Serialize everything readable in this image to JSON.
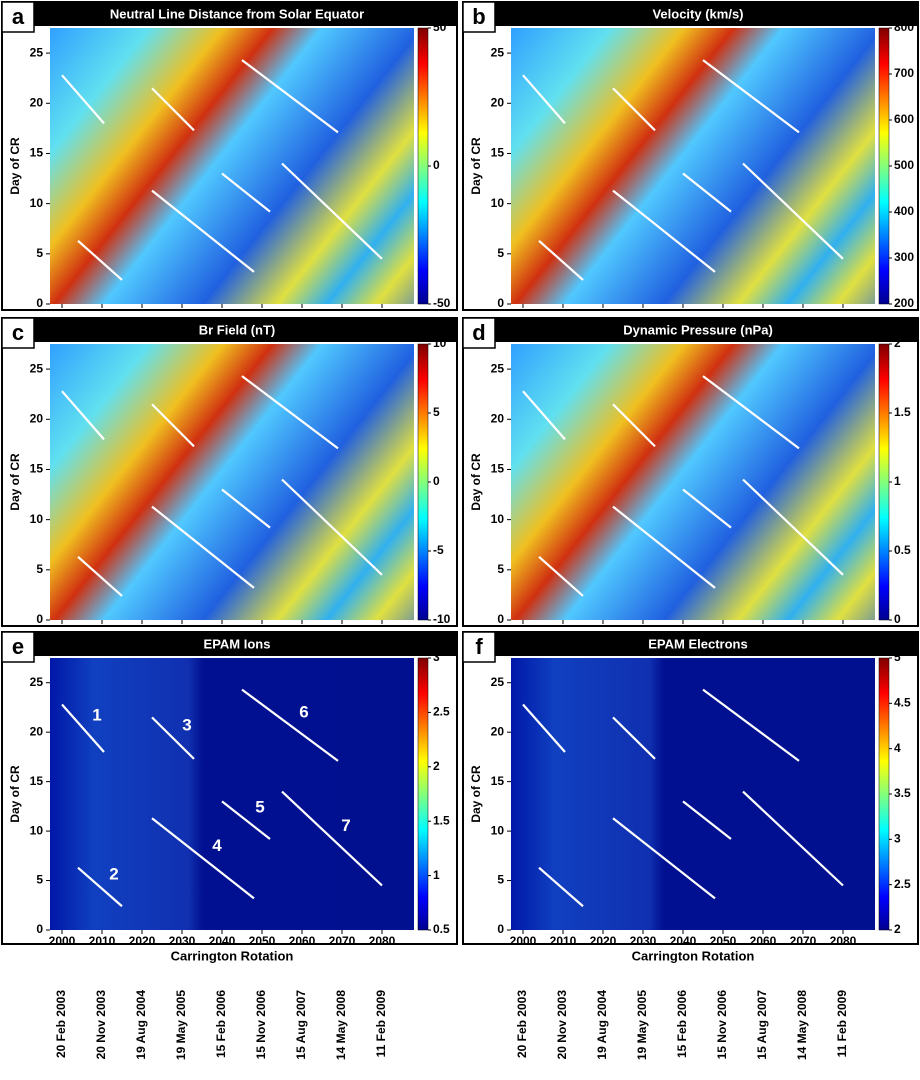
{
  "chart_data": [
    {
      "type": "heatmap",
      "letter": "a",
      "title": "Neutral Line Distance from Solar Equator",
      "ylabel": "Day of CR",
      "xlim": [
        1997,
        2088
      ],
      "xticks": [
        2000,
        2010,
        2020,
        2030,
        2040,
        2050,
        2060,
        2070,
        2080
      ],
      "ylim": [
        0,
        27.5
      ],
      "yticks": [
        0,
        5,
        10,
        15,
        20,
        25
      ],
      "clim": [
        -50,
        50
      ],
      "cticks": [
        -50,
        0,
        50
      ],
      "colormap": "jet",
      "tracks": [
        {
          "x": [
            2000,
            2010.5
          ],
          "y": [
            22.8,
            18
          ]
        },
        {
          "x": [
            2004,
            2015
          ],
          "y": [
            6.3,
            2.4
          ]
        },
        {
          "x": [
            2022.5,
            2033
          ],
          "y": [
            21.5,
            17.3
          ]
        },
        {
          "x": [
            2022.5,
            2048
          ],
          "y": [
            11.3,
            3.2
          ]
        },
        {
          "x": [
            2040,
            2052
          ],
          "y": [
            13,
            9.2
          ]
        },
        {
          "x": [
            2045,
            2069
          ],
          "y": [
            24.3,
            17.1
          ]
        },
        {
          "x": [
            2055,
            2080
          ],
          "y": [
            14,
            4.5
          ]
        }
      ]
    },
    {
      "type": "heatmap",
      "letter": "b",
      "title": "Velocity (km/s)",
      "ylabel": "Day of CR",
      "xlim": [
        1997,
        2088
      ],
      "xticks": [
        2000,
        2010,
        2020,
        2030,
        2040,
        2050,
        2060,
        2070,
        2080
      ],
      "ylim": [
        0,
        27.5
      ],
      "yticks": [
        0,
        5,
        10,
        15,
        20,
        25
      ],
      "clim": [
        200,
        800
      ],
      "cticks": [
        200,
        300,
        400,
        500,
        600,
        700,
        800
      ],
      "colormap": "jet",
      "tracks": [
        {
          "x": [
            2000,
            2010.5
          ],
          "y": [
            22.8,
            18
          ]
        },
        {
          "x": [
            2004,
            2015
          ],
          "y": [
            6.3,
            2.4
          ]
        },
        {
          "x": [
            2022.5,
            2033
          ],
          "y": [
            21.5,
            17.3
          ]
        },
        {
          "x": [
            2022.5,
            2048
          ],
          "y": [
            11.3,
            3.2
          ]
        },
        {
          "x": [
            2040,
            2052
          ],
          "y": [
            13,
            9.2
          ]
        },
        {
          "x": [
            2045,
            2069
          ],
          "y": [
            24.3,
            17.1
          ]
        },
        {
          "x": [
            2055,
            2080
          ],
          "y": [
            14,
            4.5
          ]
        }
      ]
    },
    {
      "type": "heatmap",
      "letter": "c",
      "title": "Br Field (nT)",
      "ylabel": "Day of CR",
      "xlim": [
        1997,
        2088
      ],
      "xticks": [
        2000,
        2010,
        2020,
        2030,
        2040,
        2050,
        2060,
        2070,
        2080
      ],
      "ylim": [
        0,
        27.5
      ],
      "yticks": [
        0,
        5,
        10,
        15,
        20,
        25
      ],
      "clim": [
        -10,
        10
      ],
      "cticks": [
        -10,
        -5,
        0,
        5,
        10
      ],
      "colormap": "jet",
      "tracks": [
        {
          "x": [
            2000,
            2010.5
          ],
          "y": [
            22.8,
            18
          ]
        },
        {
          "x": [
            2004,
            2015
          ],
          "y": [
            6.3,
            2.4
          ]
        },
        {
          "x": [
            2022.5,
            2033
          ],
          "y": [
            21.5,
            17.3
          ]
        },
        {
          "x": [
            2022.5,
            2048
          ],
          "y": [
            11.3,
            3.2
          ]
        },
        {
          "x": [
            2040,
            2052
          ],
          "y": [
            13,
            9.2
          ]
        },
        {
          "x": [
            2045,
            2069
          ],
          "y": [
            24.3,
            17.1
          ]
        },
        {
          "x": [
            2055,
            2080
          ],
          "y": [
            14,
            4.5
          ]
        }
      ]
    },
    {
      "type": "heatmap",
      "letter": "d",
      "title": "Dynamic Pressure (nPa)",
      "ylabel": "Day of CR",
      "xlim": [
        1997,
        2088
      ],
      "xticks": [
        2000,
        2010,
        2020,
        2030,
        2040,
        2050,
        2060,
        2070,
        2080
      ],
      "ylim": [
        0,
        27.5
      ],
      "yticks": [
        0,
        5,
        10,
        15,
        20,
        25
      ],
      "clim": [
        0,
        2
      ],
      "cticks": [
        0,
        0.5,
        1,
        1.5,
        2
      ],
      "colormap": "jet",
      "tracks": [
        {
          "x": [
            2000,
            2010.5
          ],
          "y": [
            22.8,
            18
          ]
        },
        {
          "x": [
            2004,
            2015
          ],
          "y": [
            6.3,
            2.4
          ]
        },
        {
          "x": [
            2022.5,
            2033
          ],
          "y": [
            21.5,
            17.3
          ]
        },
        {
          "x": [
            2022.5,
            2048
          ],
          "y": [
            11.3,
            3.2
          ]
        },
        {
          "x": [
            2040,
            2052
          ],
          "y": [
            13,
            9.2
          ]
        },
        {
          "x": [
            2045,
            2069
          ],
          "y": [
            24.3,
            17.1
          ]
        },
        {
          "x": [
            2055,
            2080
          ],
          "y": [
            14,
            4.5
          ]
        }
      ]
    },
    {
      "type": "heatmap",
      "letter": "e",
      "title": "EPAM Ions",
      "ylabel": "Day of CR",
      "xlabel": "Carrington Rotation",
      "xlim": [
        1997,
        2088
      ],
      "xticks": [
        2000,
        2010,
        2020,
        2030,
        2040,
        2050,
        2060,
        2070,
        2080
      ],
      "date_labels": [
        "20 Feb 2003",
        "20 Nov 2003",
        "19 Aug 2004",
        "19 May 2005",
        "15 Feb 2006",
        "15 Nov 2006",
        "15 Aug 2007",
        "14 May 2008",
        "11 Feb 2009"
      ],
      "ylim": [
        0,
        27.5
      ],
      "yticks": [
        0,
        5,
        10,
        15,
        20,
        25
      ],
      "clim": [
        0.5,
        3
      ],
      "cticks": [
        0.5,
        1,
        1.5,
        2,
        2.5,
        3
      ],
      "colormap": "jet",
      "tracks": [
        {
          "label": "1",
          "x": [
            2000,
            2010.5
          ],
          "y": [
            22.8,
            18
          ]
        },
        {
          "label": "2",
          "x": [
            2004,
            2015
          ],
          "y": [
            6.3,
            2.4
          ]
        },
        {
          "label": "3",
          "x": [
            2022.5,
            2033
          ],
          "y": [
            21.5,
            17.3
          ]
        },
        {
          "label": "4",
          "x": [
            2022.5,
            2048
          ],
          "y": [
            11.3,
            3.2
          ]
        },
        {
          "label": "5",
          "x": [
            2040,
            2052
          ],
          "y": [
            13,
            9.2
          ]
        },
        {
          "label": "6",
          "x": [
            2045,
            2069
          ],
          "y": [
            24.3,
            17.1
          ]
        },
        {
          "label": "7",
          "x": [
            2055,
            2080
          ],
          "y": [
            14,
            4.5
          ]
        }
      ]
    },
    {
      "type": "heatmap",
      "letter": "f",
      "title": "EPAM Electrons",
      "ylabel": "Day of CR",
      "xlabel": "Carrington Rotation",
      "xlim": [
        1997,
        2088
      ],
      "xticks": [
        2000,
        2010,
        2020,
        2030,
        2040,
        2050,
        2060,
        2070,
        2080
      ],
      "date_labels": [
        "20 Feb 2003",
        "20 Nov 2003",
        "19 Aug 2004",
        "19 May 2005",
        "15 Feb 2006",
        "15 Nov 2006",
        "15 Aug 2007",
        "14 May 2008",
        "11 Feb 2009"
      ],
      "ylim": [
        0,
        27.5
      ],
      "yticks": [
        0,
        5,
        10,
        15,
        20,
        25
      ],
      "clim": [
        2,
        5
      ],
      "cticks": [
        2,
        2.5,
        3,
        3.5,
        4,
        4.5,
        5
      ],
      "colormap": "jet",
      "tracks": [
        {
          "x": [
            2000,
            2010.5
          ],
          "y": [
            22.8,
            18
          ]
        },
        {
          "x": [
            2004,
            2015
          ],
          "y": [
            6.3,
            2.4
          ]
        },
        {
          "x": [
            2022.5,
            2033
          ],
          "y": [
            21.5,
            17.3
          ]
        },
        {
          "x": [
            2022.5,
            2048
          ],
          "y": [
            11.3,
            3.2
          ]
        },
        {
          "x": [
            2040,
            2052
          ],
          "y": [
            13,
            9.2
          ]
        },
        {
          "x": [
            2045,
            2069
          ],
          "y": [
            24.3,
            17.1
          ]
        },
        {
          "x": [
            2055,
            2080
          ],
          "y": [
            14,
            4.5
          ]
        }
      ]
    }
  ]
}
